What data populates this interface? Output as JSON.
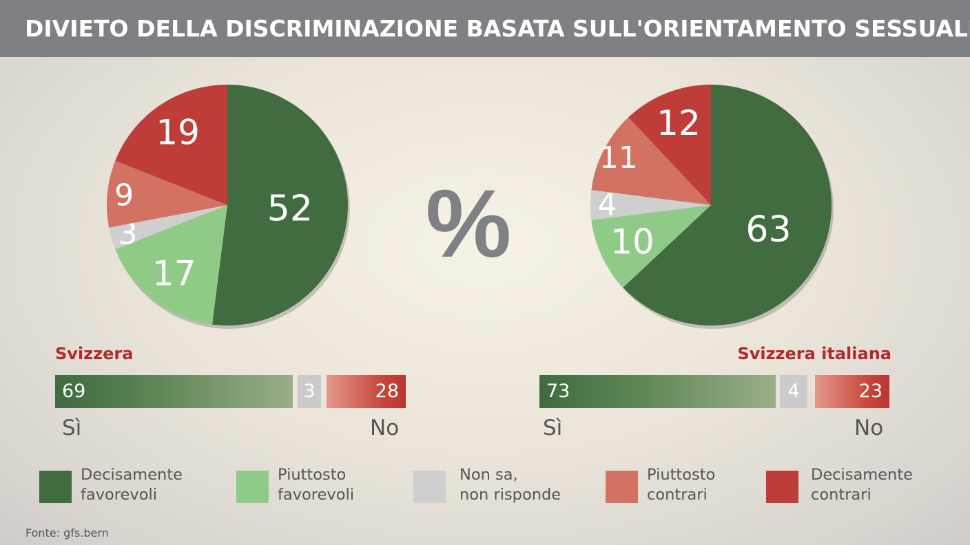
{
  "title": "DIVIETO DELLA DISCRIMINAZIONE BASATA SULL'ORIENTAMENTO SESSUALE",
  "unit_symbol": "%",
  "source": "Fonte: gfs.bern",
  "colors": {
    "decisamente_favorevoli": "#406c40",
    "piuttosto_favorevoli": "#8fcb86",
    "non_sa": "#cfcfcf",
    "piuttosto_contrari": "#d37262",
    "decisamente_contrari": "#bf3d38"
  },
  "legend": [
    {
      "label": "Decisamente\nfavorevoli",
      "color": "#406c40"
    },
    {
      "label": "Piuttosto\nfavorevoli",
      "color": "#8fcb86"
    },
    {
      "label": "Non sa,\nnon risponde",
      "color": "#cfcfcf"
    },
    {
      "label": "Piuttosto\ncontrari",
      "color": "#d37262"
    },
    {
      "label": "Decisamente\ncontrari",
      "color": "#bf3d38"
    }
  ],
  "yes_label": "Sì",
  "no_label": "No",
  "chart_data": [
    {
      "type": "pie",
      "title": "Svizzera",
      "categories": [
        "Decisamente favorevoli",
        "Piuttosto favorevoli",
        "Non sa, non risponde",
        "Piuttosto contrari",
        "Decisamente contrari"
      ],
      "values": [
        52,
        17,
        3,
        9,
        19
      ],
      "summary": {
        "yes": 69,
        "unknown": 3,
        "no": 28
      }
    },
    {
      "type": "pie",
      "title": "Svizzera italiana",
      "categories": [
        "Decisamente favorevoli",
        "Piuttosto favorevoli",
        "Non sa, non risponde",
        "Piuttosto contrari",
        "Decisamente contrari"
      ],
      "values": [
        63,
        10,
        4,
        11,
        12
      ],
      "summary": {
        "yes": 73,
        "unknown": 4,
        "no": 23
      }
    }
  ]
}
